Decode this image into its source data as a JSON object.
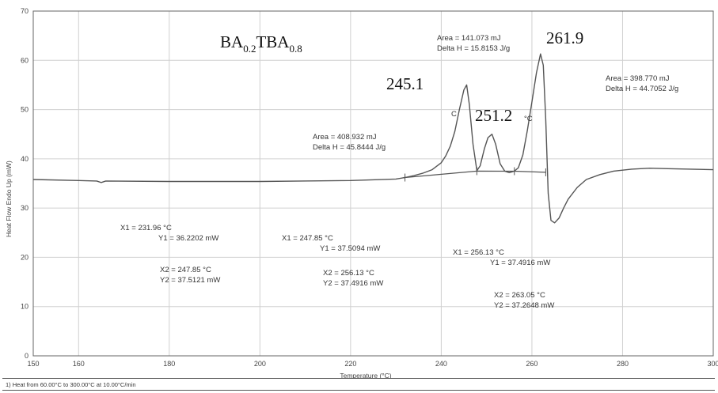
{
  "chart_data": {
    "type": "line",
    "title": "",
    "sample_label": {
      "p1": "BA",
      "s1": "0.2",
      "p2": "TBA",
      "s2": "0.8"
    },
    "xlabel": "Temperature (°C)",
    "ylabel": "Heat Flow Endo Up (mW)",
    "xlim": [
      150,
      300
    ],
    "ylim": [
      0,
      70
    ],
    "x_ticks": [
      150,
      160,
      180,
      200,
      220,
      240,
      260,
      280,
      300
    ],
    "y_ticks": [
      0,
      10,
      20,
      30,
      40,
      50,
      60,
      70
    ],
    "grid": true,
    "series": [
      {
        "x": [
          150,
          160,
          164,
          165,
          166,
          180,
          200,
          220,
          230,
          232,
          234,
          236,
          238,
          240,
          241,
          242,
          243,
          244,
          245,
          245.6,
          246.2,
          247,
          247.85,
          248.6,
          249.5,
          250.3,
          251.2,
          252,
          253,
          254,
          255,
          256.13,
          257,
          258,
          259,
          260,
          261,
          261.9,
          262.5,
          263.05,
          263.6,
          264.2,
          265,
          266,
          267,
          268,
          270,
          272,
          275,
          278,
          282,
          286,
          290,
          295,
          300
        ],
        "y": [
          35.8,
          35.6,
          35.5,
          35.2,
          35.5,
          35.4,
          35.4,
          35.6,
          35.9,
          36.2,
          36.6,
          37.1,
          37.8,
          39.2,
          40.6,
          42.6,
          45.6,
          50,
          54,
          55,
          51,
          43,
          37.6,
          38.6,
          42,
          44.3,
          45,
          43,
          39,
          37.5,
          37.2,
          37.5,
          38.2,
          40.8,
          45.8,
          51.5,
          57.5,
          61.3,
          59,
          48,
          33,
          27.5,
          27,
          28,
          30,
          31.8,
          34.2,
          35.8,
          36.8,
          37.5,
          37.9,
          38.1,
          38,
          37.9,
          37.8
        ]
      }
    ],
    "baselines": [
      {
        "x": [
          232,
          247.85,
          256.13,
          263.05
        ],
        "y": [
          36.2,
          37.5,
          37.49,
          37.26
        ]
      }
    ],
    "peaks": [
      {
        "x": 245.1,
        "y": 55,
        "label": "245.1"
      },
      {
        "x": 251.2,
        "y": 45,
        "label": "251.2"
      },
      {
        "x": 261.9,
        "y": 61.3,
        "label": "261.9"
      }
    ],
    "annotations": [
      {
        "line1": "Area = 408.932 mJ",
        "line2": "Delta H = 45.8444 J/g"
      },
      {
        "line1": "Area = 141.073 mJ",
        "line2": "Delta H = 15.8153 J/g"
      },
      {
        "line1": "Area = 398.770 mJ",
        "line2": "Delta H = 44.7052 J/g"
      },
      {
        "line1": "X1 = 231.96 °C",
        "line2": "Y1 = 36.2202 mW"
      },
      {
        "line1": "X2 = 247.85 °C",
        "line2": "Y2 = 37.5121 mW"
      },
      {
        "line1": "X1 = 247.85 °C",
        "line2": "Y1 = 37.5094 mW"
      },
      {
        "line1": "X2 = 256.13 °C",
        "line2": "Y2 = 37.4916 mW"
      },
      {
        "line1": "X1 = 256.13 °C",
        "line2": "Y1 = 37.4916 mW"
      },
      {
        "line1": "X2 = 263.05 °C",
        "line2": "Y2 = 37.2648 mW"
      }
    ],
    "stray_marks": [
      "C",
      "°C"
    ]
  },
  "footer": "1)  Heat from 60.00°C to 300.00°C at 10.00°C/min",
  "colors": {
    "curve": "#555555",
    "grid": "#d0d0d0",
    "axis": "#666666"
  }
}
